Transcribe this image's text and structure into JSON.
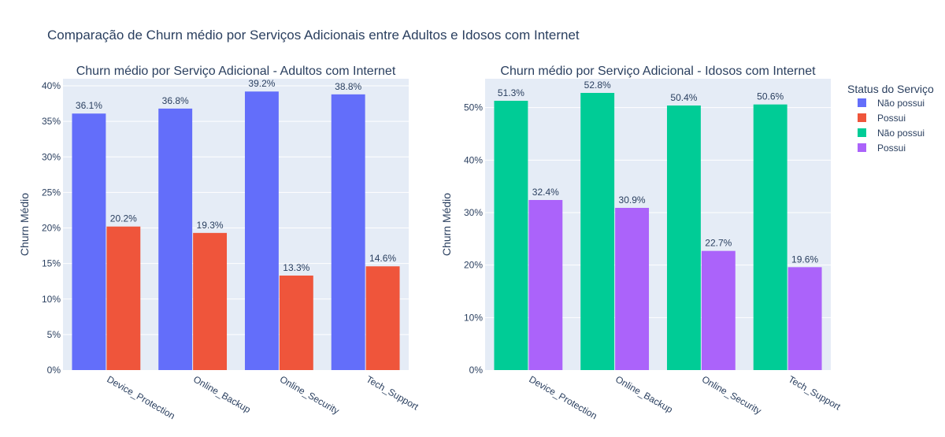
{
  "title": "Comparação de Churn médio por Serviços Adicionais entre Adultos e Idosos com Internet",
  "legend": {
    "title": "Status do Serviço",
    "items": [
      {
        "label": "Não possui",
        "color": "#636efa"
      },
      {
        "label": "Possui",
        "color": "#ef553b"
      },
      {
        "label": "Não possui",
        "color": "#00cc96"
      },
      {
        "label": "Possui",
        "color": "#ab63fa"
      }
    ]
  },
  "chart_data": [
    {
      "type": "bar",
      "title": "Churn médio por Serviço Adicional - Adultos com Internet",
      "xlabel": "",
      "ylabel": "Churn Médio",
      "categories": [
        "Device_Protection",
        "Online_Backup",
        "Online_Security",
        "Tech_Support"
      ],
      "ylim": [
        0,
        0.41
      ],
      "yticks": [
        0,
        0.05,
        0.1,
        0.15,
        0.2,
        0.25,
        0.3,
        0.35,
        0.4
      ],
      "ytick_labels": [
        "0%",
        "5%",
        "10%",
        "15%",
        "20%",
        "25%",
        "30%",
        "35%",
        "40%"
      ],
      "series": [
        {
          "name": "Não possui",
          "color": "#636efa",
          "values": [
            0.361,
            0.368,
            0.392,
            0.388
          ],
          "labels": [
            "36.1%",
            "36.8%",
            "39.2%",
            "38.8%"
          ]
        },
        {
          "name": "Possui",
          "color": "#ef553b",
          "values": [
            0.202,
            0.193,
            0.133,
            0.146
          ],
          "labels": [
            "20.2%",
            "19.3%",
            "13.3%",
            "14.6%"
          ]
        }
      ],
      "grid": true
    },
    {
      "type": "bar",
      "title": "Churn médio por Serviço Adicional - Idosos com Internet",
      "xlabel": "",
      "ylabel": "Churn Médio",
      "categories": [
        "Device_Protection",
        "Online_Backup",
        "Online_Security",
        "Tech_Support"
      ],
      "ylim": [
        0,
        0.555
      ],
      "yticks": [
        0,
        0.1,
        0.2,
        0.3,
        0.4,
        0.5
      ],
      "ytick_labels": [
        "0%",
        "10%",
        "20%",
        "30%",
        "40%",
        "50%"
      ],
      "series": [
        {
          "name": "Não possui",
          "color": "#00cc96",
          "values": [
            0.513,
            0.528,
            0.504,
            0.506
          ],
          "labels": [
            "51.3%",
            "52.8%",
            "50.4%",
            "50.6%"
          ]
        },
        {
          "name": "Possui",
          "color": "#ab63fa",
          "values": [
            0.324,
            0.309,
            0.227,
            0.196
          ],
          "labels": [
            "32.4%",
            "30.9%",
            "22.7%",
            "19.6%"
          ]
        }
      ],
      "grid": true
    }
  ]
}
